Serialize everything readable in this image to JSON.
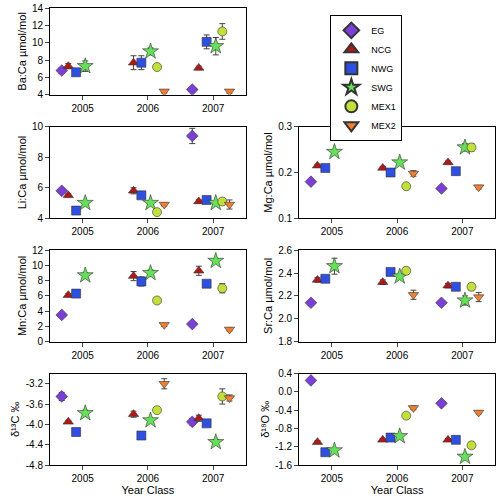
{
  "chart_data": [
    {
      "type": "scatter",
      "y_label": "Ba:Ca µmol/mol",
      "legend": "upper right",
      "xlim": [
        2004.5,
        2007.5
      ],
      "xticks": [
        2005,
        2006,
        2007
      ],
      "ylim": [
        4,
        14
      ],
      "yticks": [
        4,
        6,
        8,
        10,
        12,
        14
      ],
      "series": [
        {
          "name": "EG",
          "color": "#7b3fd6",
          "marker": "diamond",
          "x": [
            2004.68,
            2005.68,
            2006.68
          ],
          "values": [
            6.8,
            null,
            4.6
          ],
          "errors": [
            0.3,
            null,
            0.2
          ]
        },
        {
          "name": "NCG",
          "color": "#b01818",
          "marker": "triangle-up",
          "x": [
            2004.78,
            2005.78,
            2006.78
          ],
          "values": [
            7.3,
            7.7,
            7.1
          ],
          "errors": [
            0.3,
            0.8,
            0.2
          ]
        },
        {
          "name": "NWG",
          "color": "#2f4fe0",
          "marker": "square",
          "x": [
            2004.9,
            2005.9,
            2006.9
          ],
          "values": [
            6.6,
            7.7,
            10.1
          ],
          "errors": [
            0.4,
            0.8,
            0.8
          ]
        },
        {
          "name": "SWG",
          "color": "#66e05a",
          "marker": "star",
          "x": [
            2005.04,
            2006.04,
            2007.04
          ],
          "values": [
            7.3,
            9.0,
            9.6
          ],
          "errors": [
            0.6,
            0.4,
            1.0
          ]
        },
        {
          "name": "MEX1",
          "color": "#c2e03c",
          "marker": "circle",
          "x": [
            2005.14,
            2006.14,
            2007.14
          ],
          "values": [
            null,
            7.2,
            11.3
          ],
          "errors": [
            null,
            0.3,
            0.9
          ]
        },
        {
          "name": "MEX2",
          "color": "#f08030",
          "marker": "triangle-down",
          "x": [
            2005.25,
            2006.25,
            2007.25
          ],
          "values": [
            null,
            4.4,
            4.4
          ],
          "errors": [
            null,
            0.2,
            0.2
          ]
        }
      ]
    },
    {
      "type": "scatter",
      "y_label": "Li:Ca µmol/mol",
      "xlim": [
        2004.5,
        2007.5
      ],
      "xticks": [
        2005,
        2006,
        2007
      ],
      "ylim": [
        4,
        10
      ],
      "yticks": [
        4,
        6,
        8,
        10
      ],
      "series": [
        {
          "name": "EG",
          "color": "#7b3fd6",
          "marker": "diamond",
          "x": [
            2004.68,
            2005.68,
            2006.68
          ],
          "values": [
            5.8,
            null,
            9.4
          ],
          "errors": [
            0.1,
            null,
            0.5
          ]
        },
        {
          "name": "NCG",
          "color": "#b01818",
          "marker": "triangle-up",
          "x": [
            2004.78,
            2005.78,
            2006.78
          ],
          "values": [
            5.5,
            5.8,
            5.1
          ],
          "errors": [
            0.1,
            0.2,
            0.1
          ]
        },
        {
          "name": "NWG",
          "color": "#2f4fe0",
          "marker": "square",
          "x": [
            2004.9,
            2005.9,
            2006.9
          ],
          "values": [
            4.5,
            5.5,
            5.2
          ],
          "errors": [
            0.1,
            0.1,
            0.1
          ]
        },
        {
          "name": "SWG",
          "color": "#66e05a",
          "marker": "star",
          "x": [
            2005.04,
            2006.04,
            2007.04
          ],
          "values": [
            5.0,
            5.0,
            5.0
          ],
          "errors": [
            0.1,
            0.1,
            0.1
          ]
        },
        {
          "name": "MEX1",
          "color": "#c2e03c",
          "marker": "circle",
          "x": [
            2005.14,
            2006.14,
            2007.14
          ],
          "values": [
            null,
            4.4,
            5.1
          ],
          "errors": [
            null,
            0.1,
            0.2
          ]
        },
        {
          "name": "MEX2",
          "color": "#f08030",
          "marker": "triangle-down",
          "x": [
            2005.25,
            2006.25,
            2007.25
          ],
          "values": [
            null,
            4.9,
            4.9
          ],
          "errors": [
            null,
            0.1,
            0.3
          ]
        }
      ]
    },
    {
      "type": "scatter",
      "y_label": "Mg:Ca µmol/mol",
      "xlim": [
        2004.5,
        2007.5
      ],
      "xticks": [
        2005,
        2006,
        2007
      ],
      "ylim": [
        0.1,
        0.3
      ],
      "yticks": [
        0.1,
        0.2,
        0.3
      ],
      "series": [
        {
          "name": "EG",
          "color": "#7b3fd6",
          "marker": "diamond",
          "x": [
            2004.68,
            2005.68,
            2006.68
          ],
          "values": [
            0.18,
            null,
            0.165
          ],
          "errors": [
            0.003,
            null,
            0.003
          ]
        },
        {
          "name": "NCG",
          "color": "#b01818",
          "marker": "triangle-up",
          "x": [
            2004.78,
            2005.78,
            2006.78
          ],
          "values": [
            0.215,
            0.21,
            0.222
          ],
          "errors": [
            0.003,
            0.003,
            0.003
          ]
        },
        {
          "name": "NWG",
          "color": "#2f4fe0",
          "marker": "square",
          "x": [
            2004.9,
            2005.9,
            2006.9
          ],
          "values": [
            0.21,
            0.2,
            0.203
          ],
          "errors": [
            0.003,
            0.003,
            0.003
          ]
        },
        {
          "name": "SWG",
          "color": "#66e05a",
          "marker": "star",
          "x": [
            2005.04,
            2006.04,
            2007.04
          ],
          "values": [
            0.245,
            0.222,
            0.255
          ],
          "errors": [
            0.004,
            0.003,
            0.008
          ]
        },
        {
          "name": "MEX1",
          "color": "#c2e03c",
          "marker": "circle",
          "x": [
            2005.14,
            2006.14,
            2007.14
          ],
          "values": [
            null,
            0.17,
            0.255
          ],
          "errors": [
            null,
            0.003,
            0.008
          ]
        },
        {
          "name": "MEX2",
          "color": "#f08030",
          "marker": "triangle-down",
          "x": [
            2005.25,
            2006.25,
            2007.25
          ],
          "values": [
            null,
            0.198,
            0.168
          ],
          "errors": [
            null,
            0.006,
            0.004
          ]
        }
      ]
    },
    {
      "type": "scatter",
      "y_label": "Mn:Ca µmol/mol",
      "xlim": [
        2004.5,
        2007.5
      ],
      "xticks": [
        2005,
        2006,
        2007
      ],
      "ylim": [
        0,
        12
      ],
      "yticks": [
        0,
        2,
        4,
        6,
        8,
        10,
        12
      ],
      "series": [
        {
          "name": "EG",
          "color": "#7b3fd6",
          "marker": "diamond",
          "x": [
            2004.68,
            2005.68,
            2006.68
          ],
          "values": [
            3.5,
            null,
            2.3
          ],
          "errors": [
            0.2,
            null,
            0.2
          ]
        },
        {
          "name": "NCG",
          "color": "#b01818",
          "marker": "triangle-up",
          "x": [
            2004.78,
            2005.78,
            2006.78
          ],
          "values": [
            6.1,
            8.6,
            9.3
          ],
          "errors": [
            0.2,
            0.6,
            0.6
          ]
        },
        {
          "name": "NWG",
          "color": "#2f4fe0",
          "marker": "square",
          "x": [
            2004.9,
            2005.9,
            2006.9
          ],
          "values": [
            6.3,
            7.9,
            7.6
          ],
          "errors": [
            0.2,
            0.6,
            0.4
          ]
        },
        {
          "name": "SWG",
          "color": "#66e05a",
          "marker": "star",
          "x": [
            2005.04,
            2006.04,
            2007.04
          ],
          "values": [
            8.7,
            9.0,
            10.6
          ],
          "errors": [
            0.3,
            0.4,
            0.3
          ]
        },
        {
          "name": "MEX1",
          "color": "#c2e03c",
          "marker": "circle",
          "x": [
            2005.14,
            2006.14,
            2007.14
          ],
          "values": [
            null,
            5.4,
            7.0
          ],
          "errors": [
            null,
            0.2,
            0.6
          ]
        },
        {
          "name": "MEX2",
          "color": "#f08030",
          "marker": "triangle-down",
          "x": [
            2005.25,
            2006.25,
            2007.25
          ],
          "values": [
            null,
            2.2,
            1.6
          ],
          "errors": [
            null,
            0.2,
            0.2
          ]
        }
      ]
    },
    {
      "type": "scatter",
      "y_label": "Sr:Ca µmol/mol",
      "xlim": [
        2004.5,
        2007.5
      ],
      "xticks": [
        2005,
        2006,
        2007
      ],
      "ylim": [
        1.8,
        2.6
      ],
      "yticks": [
        1.8,
        {
          "value": 2,
          "label": "2.0"
        },
        2.2,
        2.4,
        2.6
      ],
      "series": [
        {
          "name": "EG",
          "color": "#7b3fd6",
          "marker": "diamond",
          "x": [
            2004.68,
            2005.68,
            2006.68
          ],
          "values": [
            2.14,
            null,
            2.14
          ],
          "errors": [
            0.02,
            null,
            0.01
          ]
        },
        {
          "name": "NCG",
          "color": "#b01818",
          "marker": "triangle-up",
          "x": [
            2004.78,
            2005.78,
            2006.78
          ],
          "values": [
            2.34,
            2.32,
            2.29
          ],
          "errors": [
            0.02,
            0.02,
            0.02
          ]
        },
        {
          "name": "NWG",
          "color": "#2f4fe0",
          "marker": "square",
          "x": [
            2004.9,
            2005.9,
            2006.9
          ],
          "values": [
            2.35,
            2.41,
            2.28
          ],
          "errors": [
            0.02,
            0.02,
            0.02
          ]
        },
        {
          "name": "SWG",
          "color": "#66e05a",
          "marker": "star",
          "x": [
            2005.04,
            2006.04,
            2007.04
          ],
          "values": [
            2.46,
            2.37,
            2.16
          ],
          "errors": [
            0.07,
            0.02,
            0.04
          ]
        },
        {
          "name": "MEX1",
          "color": "#c2e03c",
          "marker": "circle",
          "x": [
            2005.14,
            2006.14,
            2007.14
          ],
          "values": [
            null,
            2.42,
            2.28
          ],
          "errors": [
            null,
            0.03,
            0.03
          ]
        },
        {
          "name": "MEX2",
          "color": "#f08030",
          "marker": "triangle-down",
          "x": [
            2005.25,
            2006.25,
            2007.25
          ],
          "values": [
            null,
            2.21,
            2.19
          ],
          "errors": [
            null,
            0.04,
            0.04
          ]
        }
      ]
    },
    {
      "type": "scatter",
      "y_label": "δ¹³C ‰",
      "x_label": "Year Class",
      "xlim": [
        2004.5,
        2007.5
      ],
      "xticks": [
        2005,
        2006,
        2007
      ],
      "ylim": [
        -4.8,
        -3.0
      ],
      "yticks": [
        -4.8,
        -4.4,
        {
          "value": -4,
          "label": "-4.0"
        },
        -3.6,
        -3.2
      ],
      "series": [
        {
          "name": "EG",
          "color": "#7b3fd6",
          "marker": "diamond",
          "x": [
            2004.68,
            2005.68,
            2006.68
          ],
          "values": [
            -3.45,
            null,
            -3.95
          ],
          "errors": [
            0.08,
            null,
            0.06
          ]
        },
        {
          "name": "NCG",
          "color": "#b01818",
          "marker": "triangle-up",
          "x": [
            2004.78,
            2005.78,
            2006.78
          ],
          "values": [
            -3.95,
            -3.8,
            -3.88
          ],
          "errors": [
            0.03,
            0.06,
            0.06
          ]
        },
        {
          "name": "NWG",
          "color": "#2f4fe0",
          "marker": "square",
          "x": [
            2004.9,
            2005.9,
            2006.9
          ],
          "values": [
            -4.15,
            -4.22,
            -3.98
          ],
          "errors": [
            0.04,
            0.04,
            0.06
          ]
        },
        {
          "name": "SWG",
          "color": "#66e05a",
          "marker": "star",
          "x": [
            2005.04,
            2006.04,
            2007.04
          ],
          "values": [
            -3.78,
            -3.92,
            -4.35
          ],
          "errors": [
            0.06,
            0.04,
            0.05
          ]
        },
        {
          "name": "MEX1",
          "color": "#c2e03c",
          "marker": "circle",
          "x": [
            2005.14,
            2006.14,
            2007.14
          ],
          "values": [
            null,
            -3.72,
            -3.45
          ],
          "errors": [
            null,
            0.05,
            0.15
          ]
        },
        {
          "name": "MEX2",
          "color": "#f08030",
          "marker": "triangle-down",
          "x": [
            2005.25,
            2006.25,
            2007.25
          ],
          "values": [
            null,
            -3.2,
            -3.48
          ],
          "errors": [
            null,
            0.1,
            0.06
          ]
        }
      ]
    },
    {
      "type": "scatter",
      "y_label": "δ¹⁸O ‰",
      "x_label": "Year Class",
      "xlim": [
        2004.5,
        2007.5
      ],
      "xticks": [
        2005,
        2006,
        2007
      ],
      "ylim": [
        -1.6,
        0.4
      ],
      "yticks": [
        -1.6,
        -1.2,
        -0.8,
        -0.4,
        {
          "value": 0,
          "label": "0.0"
        },
        0.4
      ],
      "series": [
        {
          "name": "EG",
          "color": "#7b3fd6",
          "marker": "diamond",
          "x": [
            2004.68,
            2005.68,
            2006.68
          ],
          "values": [
            0.25,
            null,
            -0.25
          ],
          "errors": [
            0.03,
            null,
            0.03
          ]
        },
        {
          "name": "NCG",
          "color": "#b01818",
          "marker": "triangle-up",
          "x": [
            2004.78,
            2005.78,
            2006.78
          ],
          "values": [
            -1.1,
            -1.05,
            -1.05
          ],
          "errors": [
            0.03,
            0.03,
            0.03
          ]
        },
        {
          "name": "NWG",
          "color": "#2f4fe0",
          "marker": "square",
          "x": [
            2004.9,
            2005.9,
            2006.9
          ],
          "values": [
            -1.32,
            -1.0,
            -1.05
          ],
          "errors": [
            0.04,
            0.03,
            0.03
          ]
        },
        {
          "name": "SWG",
          "color": "#66e05a",
          "marker": "star",
          "x": [
            2005.04,
            2006.04,
            2007.04
          ],
          "values": [
            -1.28,
            -0.97,
            -1.42
          ],
          "errors": [
            0.04,
            0.03,
            0.05
          ]
        },
        {
          "name": "MEX1",
          "color": "#c2e03c",
          "marker": "circle",
          "x": [
            2005.14,
            2006.14,
            2007.14
          ],
          "values": [
            null,
            -0.52,
            -1.17
          ],
          "errors": [
            null,
            0.03,
            0.07
          ]
        },
        {
          "name": "MEX2",
          "color": "#f08030",
          "marker": "triangle-down",
          "x": [
            2005.25,
            2006.25,
            2007.25
          ],
          "values": [
            null,
            -0.35,
            -0.45
          ],
          "errors": [
            null,
            0.04,
            0.03
          ]
        }
      ]
    }
  ]
}
